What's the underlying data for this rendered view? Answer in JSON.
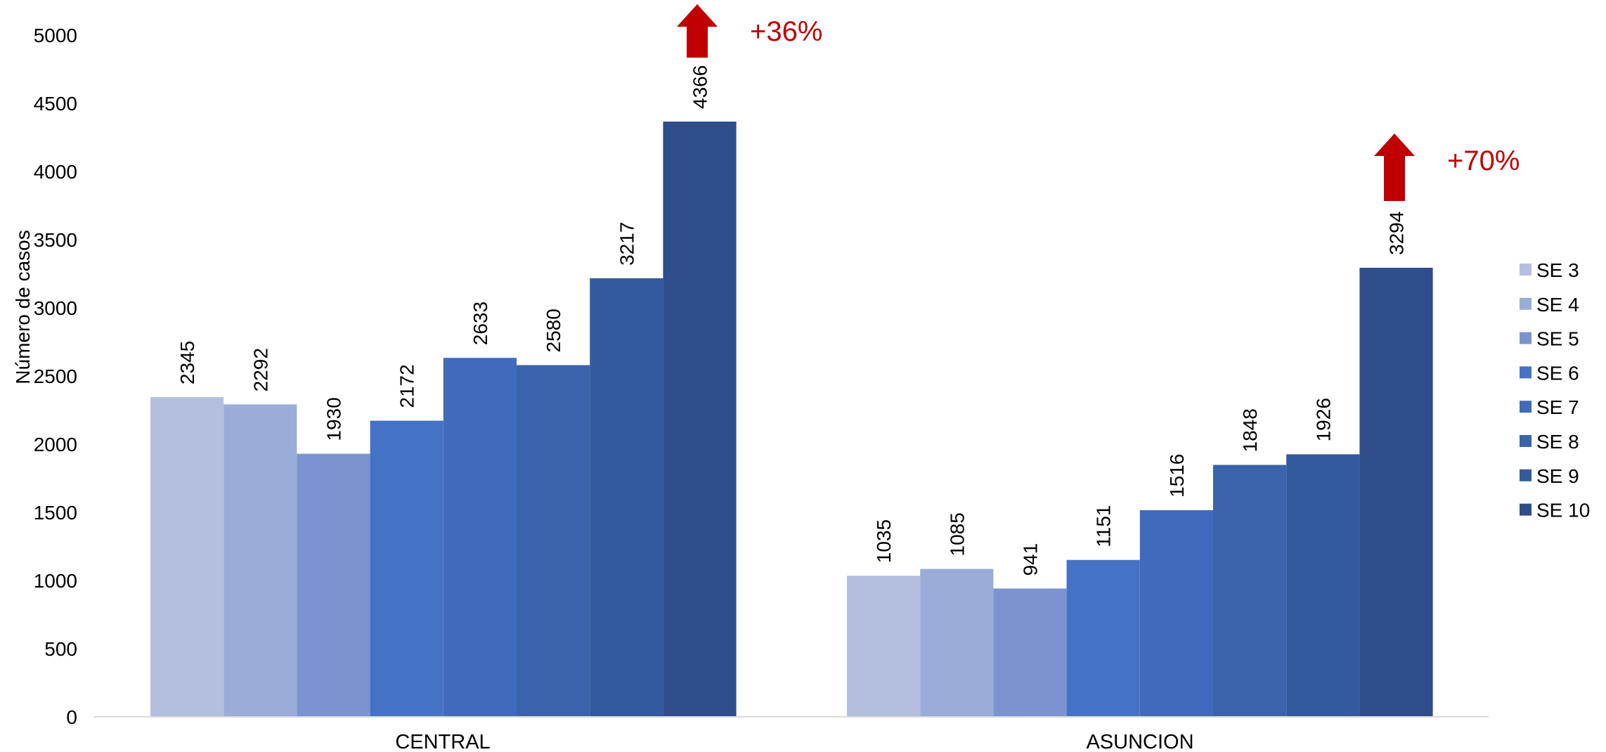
{
  "chart_data": {
    "type": "bar",
    "ylabel": "Número de casos",
    "ylim": [
      0,
      5000
    ],
    "yticks": [
      0,
      500,
      1000,
      1500,
      2000,
      2500,
      3000,
      3500,
      4000,
      4500,
      5000
    ],
    "categories": [
      "CENTRAL",
      "ASUNCION"
    ],
    "series": [
      {
        "name": "SE 3",
        "values": [
          2345,
          1035
        ],
        "color": "#b4bfe0"
      },
      {
        "name": "SE 4",
        "values": [
          2292,
          1085
        ],
        "color": "#9aadd9"
      },
      {
        "name": "SE 5",
        "values": [
          1930,
          941
        ],
        "color": "#7b94d1"
      },
      {
        "name": "SE 6",
        "values": [
          2172,
          1151
        ],
        "color": "#4472c4"
      },
      {
        "name": "SE 7",
        "values": [
          2633,
          1516
        ],
        "color": "#406bbd"
      },
      {
        "name": "SE 8",
        "values": [
          2580,
          1848
        ],
        "color": "#3a63ac"
      },
      {
        "name": "SE 9",
        "values": [
          3217,
          1926
        ],
        "color": "#335a9f"
      },
      {
        "name": "SE 10",
        "values": [
          4366,
          3294
        ],
        "color": "#2e4d8a"
      }
    ],
    "legend_position": "right",
    "grid": false,
    "annotations": [
      {
        "text": "+36%",
        "category": "CENTRAL",
        "color": "#c00000"
      },
      {
        "text": "+70%",
        "category": "ASUNCION",
        "color": "#c00000"
      }
    ]
  }
}
